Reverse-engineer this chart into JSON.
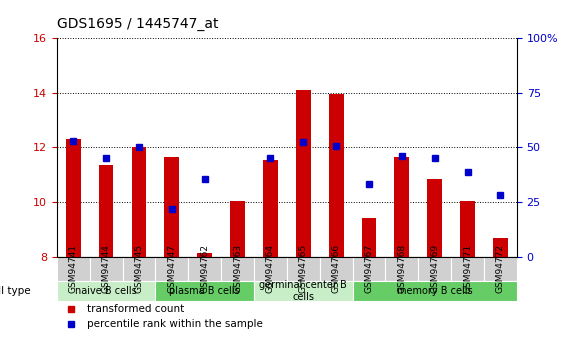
{
  "title": "GDS1695 / 1445747_at",
  "samples": [
    "GSM94741",
    "GSM94744",
    "GSM94745",
    "GSM94747",
    "GSM94762",
    "GSM94763",
    "GSM94764",
    "GSM94765",
    "GSM94766",
    "GSM94767",
    "GSM94768",
    "GSM94769",
    "GSM94771",
    "GSM94772"
  ],
  "red_values": [
    12.3,
    11.35,
    12.0,
    11.65,
    8.15,
    10.05,
    11.55,
    14.1,
    13.95,
    9.4,
    11.65,
    10.85,
    10.05,
    8.7
  ],
  "blue_values": [
    12.25,
    11.6,
    12.0,
    9.75,
    10.85,
    null,
    11.6,
    12.2,
    12.05,
    10.65,
    11.7,
    11.6,
    11.1,
    10.25
  ],
  "ymin": 8,
  "ymax": 16,
  "yticks_left": [
    8,
    10,
    12,
    14,
    16
  ],
  "yticks_right": [
    0,
    25,
    50,
    75,
    100
  ],
  "bar_color": "#cc0000",
  "dot_color": "#0000cc",
  "ylabel_left_color": "#cc0000",
  "ylabel_right_color": "#0000cc",
  "cell_groups": [
    {
      "label": "naive B cells",
      "start": 0,
      "end": 2,
      "color": "#c8eec8"
    },
    {
      "label": "plasma B cells",
      "start": 3,
      "end": 5,
      "color": "#66cc66"
    },
    {
      "label": "germinal center B\ncells",
      "start": 6,
      "end": 8,
      "color": "#c8eec8"
    },
    {
      "label": "memory B cells",
      "start": 9,
      "end": 13,
      "color": "#66cc66"
    }
  ],
  "sample_bg_color": "#d0d0d0",
  "legend_items": [
    {
      "color": "#cc0000",
      "label": "transformed count"
    },
    {
      "color": "#0000cc",
      "label": "percentile rank within the sample"
    }
  ],
  "cell_type_label": "cell type",
  "figsize": [
    5.68,
    3.45
  ],
  "dpi": 100
}
